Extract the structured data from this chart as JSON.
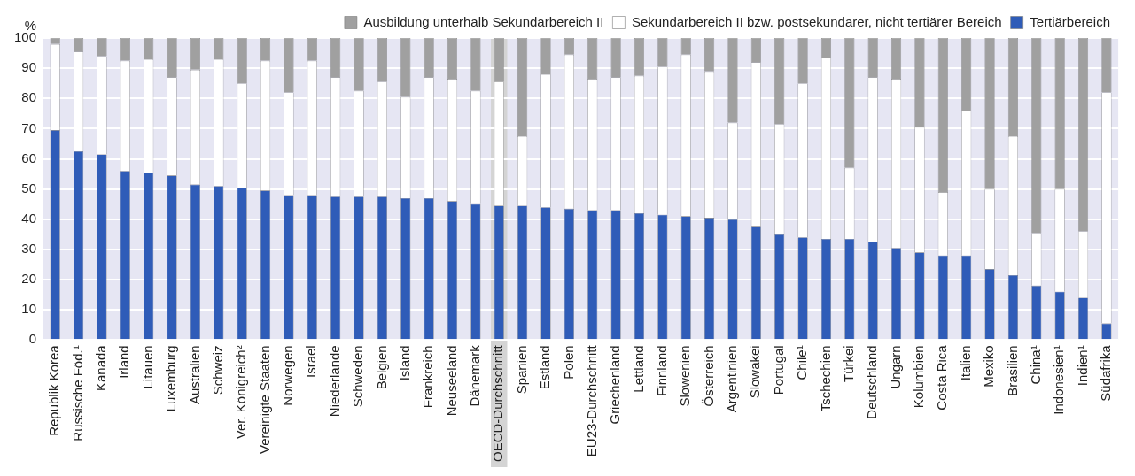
{
  "chart_data": {
    "type": "bar",
    "stacked": true,
    "ylabel": "%",
    "categories": [
      "Republik Korea",
      "Russische Föd.¹",
      "Kanada",
      "Irland",
      "Litauen",
      "Luxemburg",
      "Australien",
      "Schweiz",
      "Ver. Königreich²",
      "Vereinigte Staaten",
      "Norwegen",
      "Israel",
      "Niederlande",
      "Schweden",
      "Belgien",
      "Island",
      "Frankreich",
      "Neuseeland",
      "Dänemark",
      "OECD-Durchschnitt",
      "Spanien",
      "Estland",
      "Polen",
      "EU23-Durchschnitt",
      "Griechenland",
      "Lettland",
      "Finnland",
      "Slowenien",
      "Österreich",
      "Argentinien",
      "Slowakei",
      "Portugal",
      "Chile¹",
      "Tschechien",
      "Türkei",
      "Deutschland",
      "Ungarn",
      "Kolumbien",
      "Costa Rica",
      "Italien",
      "Mexiko",
      "Brasilien",
      "China¹",
      "Indonesien¹",
      "Indien¹",
      "Südafrika"
    ],
    "series": [
      {
        "name": "Tertiärbereich",
        "color": "#2f5cb8",
        "values": [
          69.5,
          62.5,
          61.5,
          56,
          55.5,
          54.5,
          51.5,
          51,
          50.5,
          49.5,
          48,
          48,
          47.5,
          47.5,
          47.5,
          47,
          47,
          46,
          45,
          44.5,
          44.5,
          44,
          43.5,
          43,
          43,
          42,
          41.5,
          41,
          40.5,
          40,
          37.5,
          35,
          34,
          33.5,
          33.5,
          32.5,
          30.5,
          29,
          28,
          28,
          23.5,
          21.5,
          18,
          16,
          14,
          5.5
        ]
      },
      {
        "name": "Sekundarbereich II bzw. postsekundarer, nicht tertiärer Bereich",
        "color": "#ffffff",
        "values": [
          28.5,
          33,
          32.5,
          36.5,
          37.5,
          32.5,
          38,
          42,
          34.5,
          43,
          34,
          44.5,
          39.5,
          35,
          38,
          33.5,
          40,
          40.5,
          37.5,
          41,
          23,
          44,
          51,
          43.5,
          44,
          45.5,
          49,
          53.5,
          48.5,
          32,
          54.5,
          36.5,
          51,
          60,
          23.5,
          54.5,
          56,
          41.5,
          21,
          48,
          26.5,
          46,
          17.5,
          34,
          22,
          76.5
        ]
      },
      {
        "name": "Ausbildung unterhalb Sekundarbereich II",
        "color": "#a0a0a0",
        "values": [
          2,
          4.5,
          6,
          7.5,
          7,
          13,
          10.5,
          7,
          15,
          7.5,
          18,
          7.5,
          13,
          17.5,
          14.5,
          19.5,
          13,
          13.5,
          17.5,
          14.5,
          32.5,
          12,
          5.5,
          13.5,
          13,
          12.5,
          9.5,
          5.5,
          11,
          28,
          8,
          28.5,
          15,
          6.5,
          43,
          13,
          13.5,
          29.5,
          51,
          24,
          50,
          32.5,
          64.5,
          50,
          64,
          18
        ]
      }
    ],
    "ylim": [
      0,
      100
    ],
    "yticks": [
      0,
      10,
      20,
      30,
      40,
      50,
      60,
      70,
      80,
      90,
      100
    ],
    "grid": "y",
    "legend": "top right",
    "bands": [
      {
        "axis": "x",
        "from": "OECD-Durchschnitt",
        "to": "OECD-Durchschnitt",
        "color": "#d4d4d4"
      }
    ]
  }
}
